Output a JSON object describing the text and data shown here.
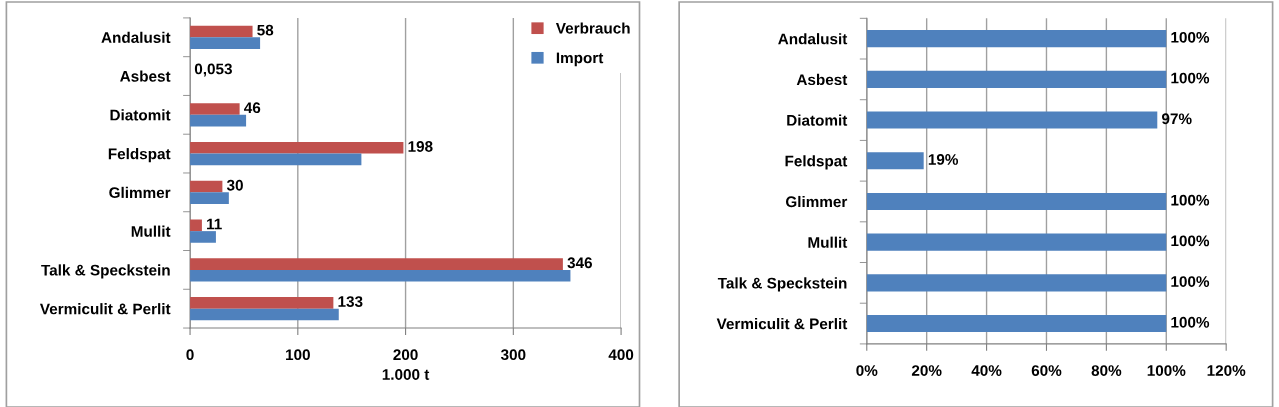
{
  "chart_data": [
    {
      "type": "bar",
      "orientation": "horizontal",
      "categories": [
        "Andalusit",
        "Asbest",
        "Diatomit",
        "Feldspat",
        "Glimmer",
        "Mullit",
        "Talk & Speckstein",
        "Vermiculit & Perlit"
      ],
      "series": [
        {
          "name": "Verbrauch",
          "color": "#c0504d",
          "values": [
            58,
            0.053,
            46,
            198,
            30,
            11,
            346,
            133
          ],
          "value_labels": [
            "58",
            "0,053",
            "46",
            "198",
            "30",
            "11",
            "346",
            "133"
          ]
        },
        {
          "name": "Import",
          "color": "#4f81bd",
          "values": [
            65,
            0,
            52,
            159,
            36,
            24,
            353,
            138
          ]
        }
      ],
      "xlabel": "1.000 t",
      "xlim": [
        0,
        400
      ],
      "xticks": [
        0,
        100,
        200,
        300,
        400
      ],
      "grid": "x",
      "legend": "top right"
    },
    {
      "type": "bar",
      "orientation": "horizontal",
      "categories": [
        "Andalusit",
        "Asbest",
        "Diatomit",
        "Feldspat",
        "Glimmer",
        "Mullit",
        "Talk & Speckstein",
        "Vermiculit & Perlit"
      ],
      "series": [
        {
          "color": "#4f81bd",
          "values": [
            100,
            100,
            97,
            19,
            100,
            100,
            100,
            100
          ],
          "value_labels": [
            "100%",
            "100%",
            "97%",
            "19%",
            "100%",
            "100%",
            "100%",
            "100%"
          ]
        }
      ],
      "xlim": [
        0,
        120
      ],
      "xticks": [
        {
          "value": 0,
          "label": "0%"
        },
        {
          "value": 20,
          "label": "20%"
        },
        {
          "value": 40,
          "label": "40%"
        },
        {
          "value": 60,
          "label": "60%"
        },
        {
          "value": 80,
          "label": "80%"
        },
        {
          "value": 100,
          "label": "100%"
        },
        {
          "value": 120,
          "label": "120%"
        }
      ],
      "grid": "x",
      "legend": false
    }
  ]
}
